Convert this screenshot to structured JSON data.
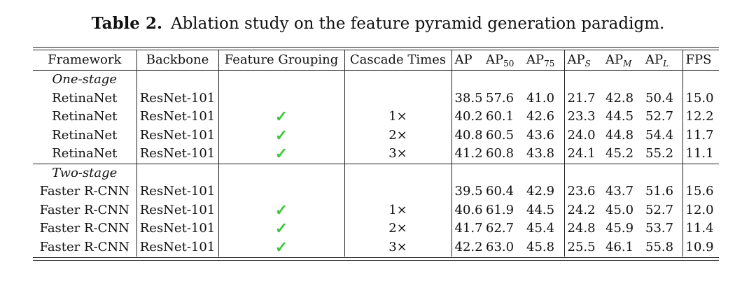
{
  "caption": {
    "label": "Table 2.",
    "text": "Ablation study on the feature pyramid generation paradigm."
  },
  "table": {
    "headers": {
      "framework": "Framework",
      "backbone": "Backbone",
      "feature_grouping": "Feature Grouping",
      "cascade_times": "Cascade Times",
      "ap": "AP",
      "ap50_base": "AP",
      "ap50_sub": "50",
      "ap75_base": "AP",
      "ap75_sub": "75",
      "aps_base": "AP",
      "aps_sub": "S",
      "apm_base": "AP",
      "apm_sub": "M",
      "apl_base": "AP",
      "apl_sub": "L",
      "fps": "FPS"
    },
    "groups": [
      {
        "name": "One-stage",
        "rows": [
          {
            "framework": "RetinaNet",
            "backbone": "ResNet-101",
            "grouping": "",
            "cascade": "",
            "ap": "38.5",
            "ap50": "57.6",
            "ap75": "41.0",
            "aps": "21.7",
            "apm": "42.8",
            "apl": "50.4",
            "fps": "15.0"
          },
          {
            "framework": "RetinaNet",
            "backbone": "ResNet-101",
            "grouping": "✓",
            "cascade": "1×",
            "ap": "40.2",
            "ap50": "60.1",
            "ap75": "42.6",
            "aps": "23.3",
            "apm": "44.5",
            "apl": "52.7",
            "fps": "12.2"
          },
          {
            "framework": "RetinaNet",
            "backbone": "ResNet-101",
            "grouping": "✓",
            "cascade": "2×",
            "ap": "40.8",
            "ap50": "60.5",
            "ap75": "43.6",
            "aps": "24.0",
            "apm": "44.8",
            "apl": "54.4",
            "fps": "11.7"
          },
          {
            "framework": "RetinaNet",
            "backbone": "ResNet-101",
            "grouping": "✓",
            "cascade": "3×",
            "ap": "41.2",
            "ap50": "60.8",
            "ap75": "43.8",
            "aps": "24.1",
            "apm": "45.2",
            "apl": "55.2",
            "fps": "11.1"
          }
        ]
      },
      {
        "name": "Two-stage",
        "rows": [
          {
            "framework": "Faster R-CNN",
            "backbone": "ResNet-101",
            "grouping": "",
            "cascade": "",
            "ap": "39.5",
            "ap50": "60.4",
            "ap75": "42.9",
            "aps": "23.6",
            "apm": "43.7",
            "apl": "51.6",
            "fps": "15.6"
          },
          {
            "framework": "Faster R-CNN",
            "backbone": "ResNet-101",
            "grouping": "✓",
            "cascade": "1×",
            "ap": "40.6",
            "ap50": "61.9",
            "ap75": "44.5",
            "aps": "24.2",
            "apm": "45.0",
            "apl": "52.7",
            "fps": "12.0"
          },
          {
            "framework": "Faster R-CNN",
            "backbone": "ResNet-101",
            "grouping": "✓",
            "cascade": "2×",
            "ap": "41.7",
            "ap50": "62.7",
            "ap75": "45.4",
            "aps": "24.8",
            "apm": "45.9",
            "apl": "53.7",
            "fps": "11.4"
          },
          {
            "framework": "Faster R-CNN",
            "backbone": "ResNet-101",
            "grouping": "✓",
            "cascade": "3×",
            "ap": "42.2",
            "ap50": "63.0",
            "ap75": "45.8",
            "aps": "25.5",
            "apm": "46.1",
            "apl": "55.8",
            "fps": "10.9"
          }
        ]
      }
    ],
    "colors": {
      "check": "#3cc83c",
      "rule": "#222222",
      "text": "#111111"
    }
  }
}
